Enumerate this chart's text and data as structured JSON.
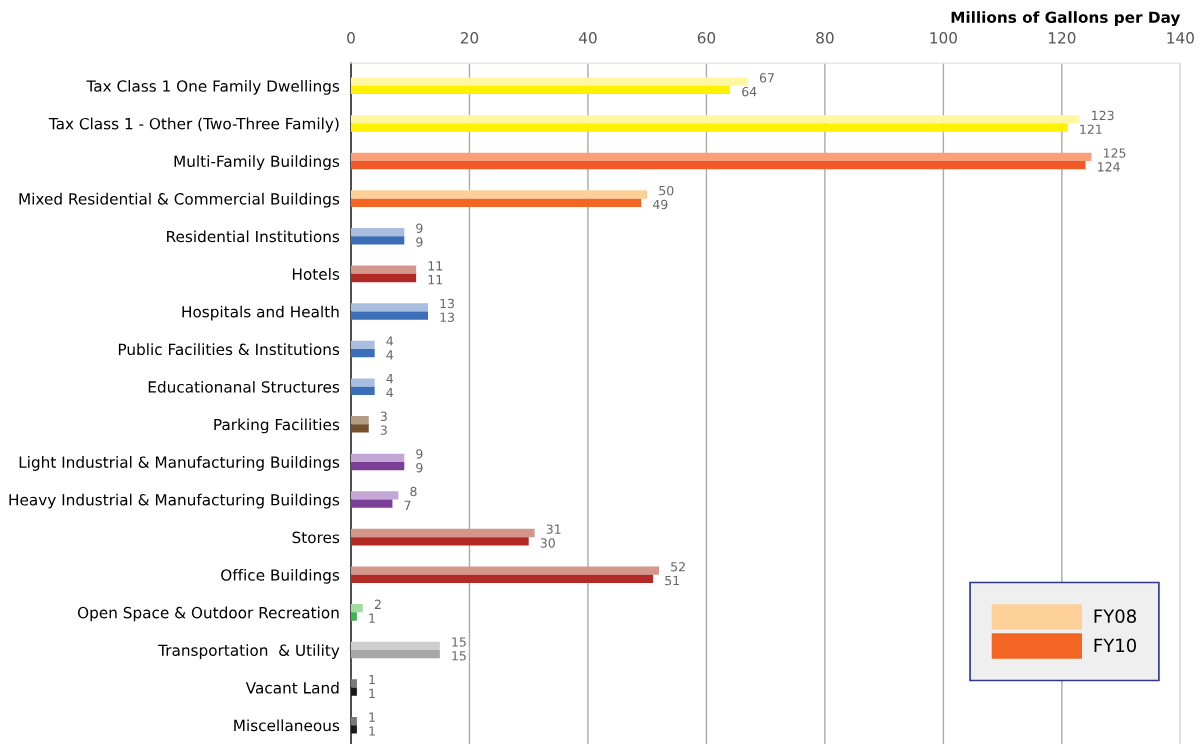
{
  "chart_data": {
    "type": "bar",
    "orientation": "horizontal",
    "xlabel": "Millions of Gallons per Day",
    "categories": [
      "Tax Class 1 One Family Dwellings",
      "Tax Class 1 - Other (Two-Three Family)",
      "Multi-Family Buildings",
      "Mixed Residential & Commercial Buildings",
      "Residential Institutions",
      "Hotels",
      "Hospitals and Health",
      "Public Facilities & Institutions",
      "Educationanal Structures",
      "Parking Facilities",
      "Light Industrial & Manufacturing Buildings",
      "Heavy Industrial & Manufacturing Buildings",
      "Stores",
      "Office Buildings",
      "Open Space & Outdoor Recreation",
      "Transportation  & Utility",
      "Vacant Land",
      "Miscellaneous"
    ],
    "series": [
      {
        "name": "FY08",
        "color": "#fdd09a",
        "values": [
          67,
          123,
          125,
          50,
          9,
          11,
          13,
          4,
          4,
          3,
          9,
          8,
          31,
          52,
          2,
          15,
          1,
          1
        ],
        "colors": [
          "#fff8a0",
          "#fff8a0",
          "#f7a07a",
          "#fdd09a",
          "#a8bde0",
          "#d4958a",
          "#a8bde0",
          "#a8bde0",
          "#a8bde0",
          "#b49a82",
          "#c3a6d6",
          "#c3a6d6",
          "#d4958a",
          "#d4958a",
          "#a6dba0",
          "#cfcfcf",
          "#7a7a7a",
          "#7a7a7a"
        ]
      },
      {
        "name": "FY10",
        "color": "#f26522",
        "values": [
          64,
          121,
          124,
          49,
          9,
          11,
          13,
          4,
          4,
          3,
          9,
          7,
          30,
          51,
          1,
          15,
          1,
          1
        ],
        "colors": [
          "#fff200",
          "#fff200",
          "#f05a28",
          "#f26522",
          "#3a6fb7",
          "#b22a25",
          "#3a6fb7",
          "#3a6fb7",
          "#3a6fb7",
          "#74502c",
          "#7b3f98",
          "#7b3f98",
          "#b22a25",
          "#b22a25",
          "#3bb54a",
          "#a7a7a7",
          "#1a1a1a",
          "#1a1a1a"
        ]
      }
    ],
    "xlim": [
      0,
      140
    ],
    "xticks": [
      0,
      20,
      40,
      60,
      80,
      100,
      120,
      140
    ],
    "grid": "x",
    "legend": "bottom right",
    "data_labels": true
  }
}
